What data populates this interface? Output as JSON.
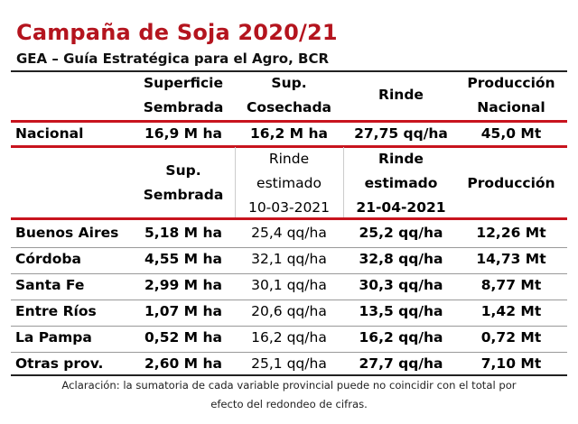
{
  "title": "Campaña de Soja 2020/21",
  "subtitle": "GEA – Guía Estratégica para el Agro, BCR",
  "colors": {
    "title": "#b4141e",
    "rules": "#c8141e"
  },
  "national_table": {
    "headers": {
      "superficie": [
        "Superficie",
        "Sembrada"
      ],
      "cosechada": [
        "Sup.",
        "Cosechada"
      ],
      "rinde": "Rinde",
      "produccion": [
        "Producción",
        "Nacional"
      ]
    },
    "row": {
      "label": "Nacional",
      "superficie": "16,9 M ha",
      "cosechada": "16,2 M ha",
      "rinde": "27,75 qq/ha",
      "produccion": "45,0 Mt"
    }
  },
  "provincial_table": {
    "headers": {
      "sembrada": [
        "Sup.",
        "Sembrada"
      ],
      "rinde_1": [
        "Rinde",
        "estimado",
        "10-03-2021"
      ],
      "rinde_2": [
        "Rinde",
        "estimado",
        "21-04-2021"
      ],
      "produccion": "Producción"
    },
    "rows": [
      {
        "label": "Buenos Aires",
        "sembrada": "5,18 M ha",
        "rinde_1": "25,4 qq/ha",
        "rinde_2": "25,2 qq/ha",
        "produccion": "12,26 Mt"
      },
      {
        "label": "Córdoba",
        "sembrada": "4,55 M ha",
        "rinde_1": "32,1 qq/ha",
        "rinde_2": "32,8 qq/ha",
        "produccion": "14,73 Mt"
      },
      {
        "label": "Santa Fe",
        "sembrada": "2,99 M ha",
        "rinde_1": "30,1 qq/ha",
        "rinde_2": "30,3 qq/ha",
        "produccion": "8,77 Mt"
      },
      {
        "label": "Entre Ríos",
        "sembrada": "1,07 M ha",
        "rinde_1": "20,6 qq/ha",
        "rinde_2": "13,5 qq/ha",
        "produccion": "1,42 Mt"
      },
      {
        "label": "La Pampa",
        "sembrada": "0,52 M ha",
        "rinde_1": "16,2 qq/ha",
        "rinde_2": "16,2 qq/ha",
        "produccion": "0,72 Mt"
      },
      {
        "label": "Otras prov.",
        "sembrada": "2,60 M ha",
        "rinde_1": "25,1 qq/ha",
        "rinde_2": "27,7 qq/ha",
        "produccion": "7,10 Mt"
      }
    ]
  },
  "note": [
    "Aclaración: la sumatoria de cada variable provincial puede no coincidir con el total por",
    "efecto del redondeo de cifras."
  ]
}
